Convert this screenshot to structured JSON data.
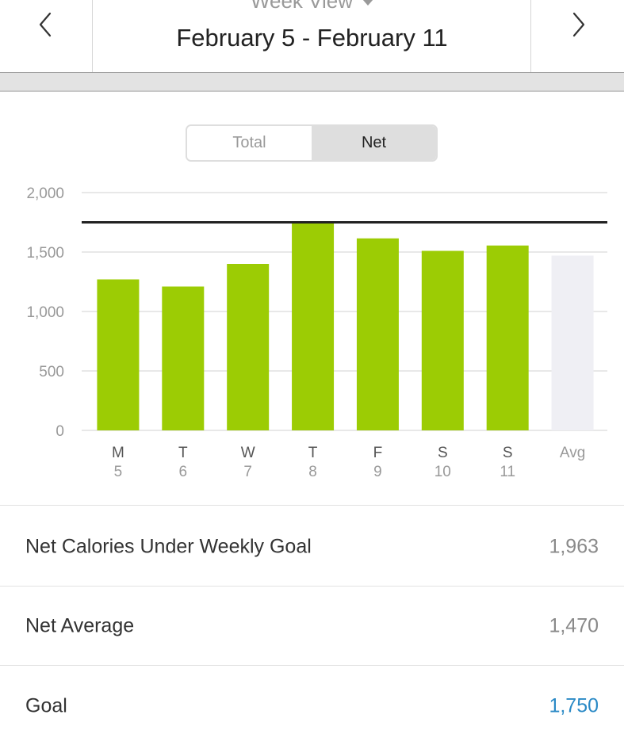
{
  "header": {
    "view_label": "Week View",
    "date_range": "February 5 - February 11"
  },
  "toggle": {
    "options": [
      "Total",
      "Net"
    ],
    "selected": "Net"
  },
  "chart_data": {
    "type": "bar",
    "categories": [
      "M",
      "T",
      "W",
      "T",
      "F",
      "S",
      "S",
      "Avg"
    ],
    "day_numbers": [
      "5",
      "6",
      "7",
      "8",
      "9",
      "10",
      "11",
      ""
    ],
    "values": [
      1270,
      1210,
      1400,
      1750,
      1615,
      1510,
      1555,
      1470
    ],
    "y_ticks": [
      0,
      500,
      1000,
      1500,
      2000
    ],
    "y_tick_labels": [
      "0",
      "500",
      "1,000",
      "1,500",
      "2,000"
    ],
    "ylim": [
      0,
      2000
    ],
    "goal_line": 1750,
    "bar_color": "#9ccc04",
    "avg_color": "#efeff4",
    "goal_line_color": "#222222",
    "grid": true
  },
  "stats": [
    {
      "label": "Net Calories Under Weekly Goal",
      "value": "1,963"
    },
    {
      "label": "Net Average",
      "value": "1,470"
    },
    {
      "label": "Goal",
      "value": "1,750",
      "accent": "#2b8ac6"
    }
  ]
}
